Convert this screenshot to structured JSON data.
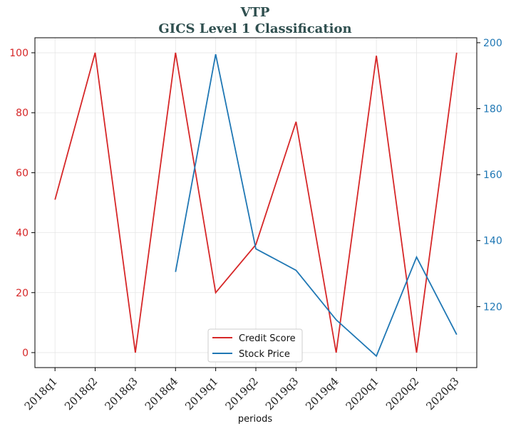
{
  "chart_data": {
    "type": "line",
    "title": "VTP",
    "subtitle": "GICS Level 1 Classification",
    "xlabel": "periods",
    "ylabel": "",
    "ylabel_right": "",
    "categories": [
      "2018q1",
      "2018q2",
      "2018q3",
      "2018q4",
      "2019q1",
      "2019q2",
      "2019q3",
      "2019q4",
      "2020q1",
      "2020q2",
      "2020q3"
    ],
    "series": [
      {
        "name": "Credit Score",
        "axis": "left",
        "color": "#d62728",
        "values": [
          51,
          100,
          0,
          100,
          20,
          36,
          77,
          0,
          99,
          0,
          100
        ]
      },
      {
        "name": "Stock Price",
        "axis": "right",
        "color": "#1f77b4",
        "values": [
          null,
          null,
          null,
          130.5,
          196.5,
          137.5,
          131,
          116,
          105,
          135,
          111.5
        ]
      }
    ],
    "ylim_left": [
      -5,
      105
    ],
    "yticks_left": [
      0,
      20,
      40,
      60,
      80,
      100
    ],
    "ylim_right": [
      101.5,
      201.5
    ],
    "yticks_right": [
      120,
      140,
      160,
      180,
      200
    ],
    "grid": true,
    "legend_position": "lower center"
  }
}
